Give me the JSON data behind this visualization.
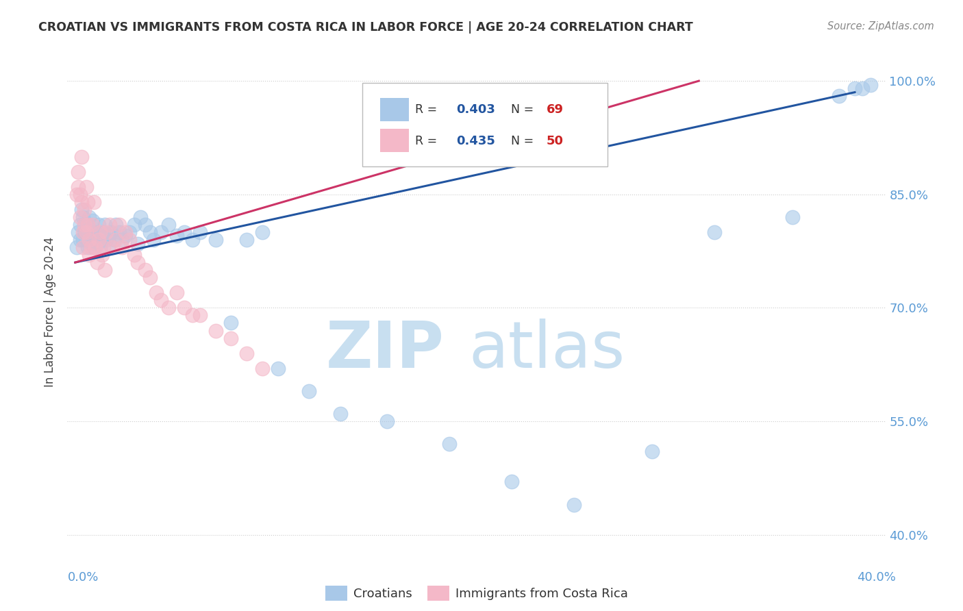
{
  "title": "CROATIAN VS IMMIGRANTS FROM COSTA RICA IN LABOR FORCE | AGE 20-24 CORRELATION CHART",
  "source": "Source: ZipAtlas.com",
  "ylabel": "In Labor Force | Age 20-24",
  "xlim": [
    -0.005,
    0.52
  ],
  "ylim": [
    0.38,
    1.01
  ],
  "yticks": [
    1.0,
    0.85,
    0.7,
    0.55,
    0.4
  ],
  "ytick_labels": [
    "100.0%",
    "85.0%",
    "70.0%",
    "55.0%",
    "40.0%"
  ],
  "x_left_label": "0.0%",
  "x_right_label": "40.0%",
  "blue_R": 0.403,
  "blue_N": 69,
  "pink_R": 0.435,
  "pink_N": 50,
  "blue_color": "#a8c8e8",
  "pink_color": "#f4b8c8",
  "blue_line_color": "#2255a0",
  "pink_line_color": "#cc3366",
  "title_color": "#333333",
  "axis_color": "#5b9bd5",
  "grid_color": "#cccccc",
  "watermark_zip_color": "#c8dff0",
  "watermark_atlas_color": "#c8dff0",
  "blue_trendline_x": [
    0.0,
    0.5
  ],
  "blue_trendline_y": [
    0.76,
    0.985
  ],
  "pink_trendline_x": [
    0.0,
    0.4
  ],
  "pink_trendline_y": [
    0.76,
    1.0
  ],
  "blue_scatter_x": [
    0.001,
    0.002,
    0.003,
    0.003,
    0.004,
    0.005,
    0.005,
    0.006,
    0.006,
    0.007,
    0.007,
    0.008,
    0.008,
    0.009,
    0.009,
    0.01,
    0.01,
    0.011,
    0.011,
    0.012,
    0.012,
    0.013,
    0.014,
    0.015,
    0.015,
    0.016,
    0.017,
    0.018,
    0.019,
    0.02,
    0.021,
    0.022,
    0.023,
    0.025,
    0.026,
    0.028,
    0.03,
    0.032,
    0.035,
    0.038,
    0.04,
    0.042,
    0.045,
    0.048,
    0.05,
    0.055,
    0.06,
    0.065,
    0.07,
    0.075,
    0.08,
    0.09,
    0.1,
    0.11,
    0.12,
    0.13,
    0.15,
    0.17,
    0.2,
    0.24,
    0.28,
    0.32,
    0.37,
    0.41,
    0.46,
    0.49,
    0.5,
    0.505,
    0.51
  ],
  "blue_scatter_y": [
    0.78,
    0.8,
    0.79,
    0.81,
    0.83,
    0.79,
    0.82,
    0.8,
    0.81,
    0.79,
    0.8,
    0.81,
    0.78,
    0.79,
    0.82,
    0.785,
    0.795,
    0.8,
    0.815,
    0.78,
    0.79,
    0.8,
    0.785,
    0.795,
    0.81,
    0.78,
    0.79,
    0.8,
    0.81,
    0.79,
    0.795,
    0.785,
    0.8,
    0.79,
    0.81,
    0.8,
    0.79,
    0.795,
    0.8,
    0.81,
    0.785,
    0.82,
    0.81,
    0.8,
    0.79,
    0.8,
    0.81,
    0.795,
    0.8,
    0.79,
    0.8,
    0.79,
    0.68,
    0.79,
    0.8,
    0.62,
    0.59,
    0.56,
    0.55,
    0.52,
    0.47,
    0.44,
    0.51,
    0.8,
    0.82,
    0.98,
    0.99,
    0.99,
    0.995
  ],
  "pink_scatter_x": [
    0.001,
    0.002,
    0.002,
    0.003,
    0.003,
    0.004,
    0.004,
    0.005,
    0.005,
    0.006,
    0.006,
    0.007,
    0.007,
    0.008,
    0.008,
    0.009,
    0.009,
    0.01,
    0.011,
    0.012,
    0.013,
    0.014,
    0.015,
    0.016,
    0.017,
    0.018,
    0.019,
    0.02,
    0.022,
    0.024,
    0.026,
    0.028,
    0.03,
    0.032,
    0.035,
    0.038,
    0.04,
    0.045,
    0.048,
    0.052,
    0.055,
    0.06,
    0.065,
    0.07,
    0.075,
    0.08,
    0.09,
    0.1,
    0.11,
    0.12
  ],
  "pink_scatter_y": [
    0.85,
    0.86,
    0.88,
    0.85,
    0.82,
    0.9,
    0.84,
    0.8,
    0.78,
    0.81,
    0.83,
    0.86,
    0.8,
    0.84,
    0.81,
    0.79,
    0.77,
    0.78,
    0.81,
    0.84,
    0.78,
    0.76,
    0.79,
    0.8,
    0.77,
    0.78,
    0.75,
    0.8,
    0.81,
    0.78,
    0.79,
    0.81,
    0.78,
    0.8,
    0.79,
    0.77,
    0.76,
    0.75,
    0.74,
    0.72,
    0.71,
    0.7,
    0.72,
    0.7,
    0.69,
    0.69,
    0.67,
    0.66,
    0.64,
    0.62
  ]
}
